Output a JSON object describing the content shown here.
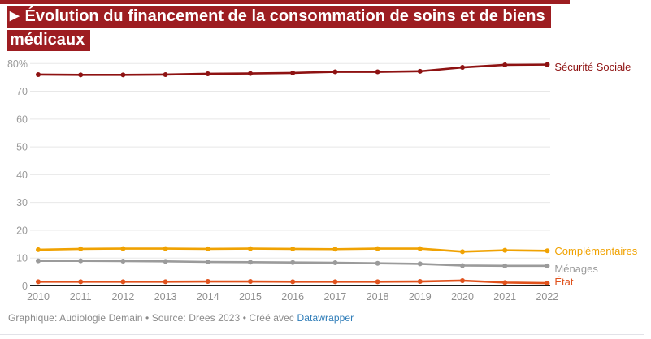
{
  "title": {
    "marker": "▶",
    "line1": "Évolution du financement de la consommation de soins et de biens",
    "line2": "médicaux"
  },
  "colors": {
    "title_bg": "#9d1d21",
    "grid": "#e8e8e8",
    "baseline": "#1a1a1a",
    "y_axis_text": "#9a9a9a",
    "x_axis_text": "#8f8f8f",
    "footer_text": "#8a8a8a",
    "link": "#2e7cb8"
  },
  "chart_data": {
    "type": "line",
    "x": [
      2010,
      2011,
      2012,
      2013,
      2014,
      2015,
      2016,
      2017,
      2018,
      2019,
      2020,
      2021,
      2022
    ],
    "series": [
      {
        "name": "Sécurité Sociale",
        "color": "#8e1212",
        "values": [
          76.0,
          75.9,
          75.9,
          76.0,
          76.3,
          76.4,
          76.6,
          77.0,
          77.0,
          77.2,
          78.6,
          79.5,
          79.6
        ]
      },
      {
        "name": "Complémentaires",
        "color": "#f0a202",
        "values": [
          13.0,
          13.3,
          13.4,
          13.4,
          13.3,
          13.4,
          13.3,
          13.2,
          13.4,
          13.4,
          12.3,
          12.8,
          12.6
        ]
      },
      {
        "name": "Ménages",
        "color": "#9b9b9b",
        "values": [
          9.0,
          9.0,
          8.9,
          8.8,
          8.6,
          8.5,
          8.4,
          8.3,
          8.1,
          7.9,
          7.3,
          7.2,
          7.2
        ]
      },
      {
        "name": "État",
        "color": "#e0521d",
        "values": [
          1.5,
          1.5,
          1.5,
          1.5,
          1.6,
          1.6,
          1.5,
          1.5,
          1.5,
          1.6,
          1.9,
          1.2,
          1.0
        ]
      }
    ],
    "ylim": [
      0,
      80
    ],
    "yticks": [
      0,
      10,
      20,
      30,
      40,
      50,
      60,
      70,
      80
    ],
    "ytick_labels": [
      "0",
      "10",
      "20",
      "30",
      "40",
      "50",
      "60",
      "70",
      "80%"
    ],
    "grid": true,
    "legend_position": "line-end-right"
  },
  "footer": {
    "credit": "Graphique: Audiologie Demain • Source: Drees 2023 • Créé avec",
    "link_label": "Datawrapper"
  }
}
